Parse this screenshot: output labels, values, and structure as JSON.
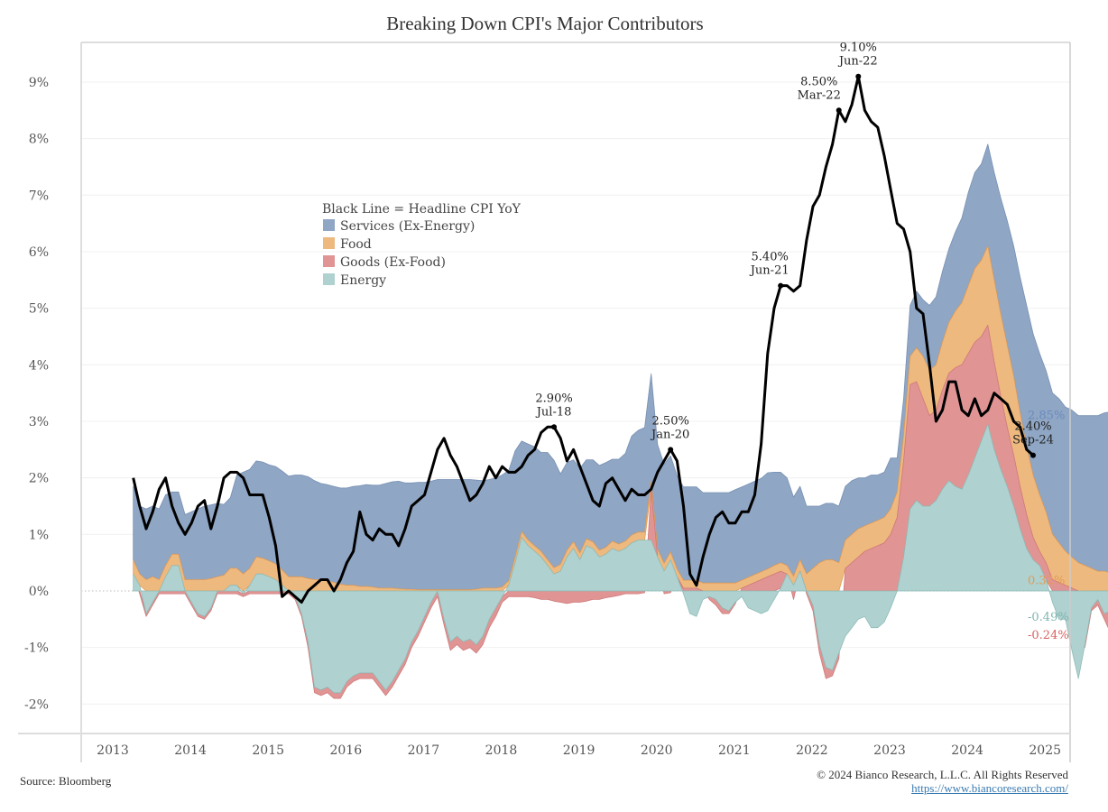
{
  "chart_data": {
    "type": "area",
    "title": "Breaking Down CPI's Major Contributors",
    "xlabel": "",
    "ylabel": "",
    "y_unit": "%",
    "ylim": [
      -2.4,
      9.6
    ],
    "yticks": [
      9,
      8,
      7,
      6,
      5,
      4,
      3,
      2,
      1,
      0,
      -1,
      -2
    ],
    "ytick_labels": [
      "9%",
      "8%",
      "7%",
      "6%",
      "5%",
      "4%",
      "3%",
      "2%",
      "1%",
      "0%",
      "-1%",
      "-2%"
    ],
    "xlim": [
      2012.7,
      2025.3
    ],
    "xticks": [
      2013,
      2014,
      2015,
      2016,
      2017,
      2018,
      2019,
      2020,
      2021,
      2022,
      2023,
      2024,
      2025
    ],
    "xtick_labels": [
      "2013",
      "2014",
      "2015",
      "2016",
      "2017",
      "2018",
      "2019",
      "2020",
      "2021",
      "2022",
      "2023",
      "2024",
      "2025"
    ],
    "grid": true,
    "stacked": true,
    "legend": {
      "placement": "upper-left-center",
      "header": "Black Line = Headline CPI YoY",
      "entries": [
        {
          "name": "Services (Ex-Energy)",
          "color": "#8fa6c4"
        },
        {
          "name": "Food",
          "color": "#eeb97f"
        },
        {
          "name": "Goods (Ex-Food)",
          "color": "#e09494"
        },
        {
          "name": "Energy",
          "color": "#afd1cf"
        }
      ]
    },
    "x_start": "2013-02",
    "x_step": "month",
    "series": [
      {
        "name": "Energy",
        "color": "#afd1cf",
        "edge": "#8fbcb8",
        "values": [
          0.3,
          0.1,
          -0.4,
          -0.2,
          0.0,
          0.25,
          0.45,
          0.45,
          0.0,
          -0.2,
          -0.4,
          -0.45,
          -0.3,
          0.0,
          0.0,
          0.1,
          0.1,
          -0.05,
          0.1,
          0.3,
          0.3,
          0.25,
          0.2,
          0.1,
          0.0,
          -0.1,
          -0.4,
          -0.9,
          -1.7,
          -1.75,
          -1.7,
          -1.8,
          -1.8,
          -1.6,
          -1.5,
          -1.45,
          -1.45,
          -1.45,
          -1.6,
          -1.75,
          -1.6,
          -1.4,
          -1.2,
          -0.9,
          -0.7,
          -0.45,
          -0.2,
          0.0,
          -0.5,
          -0.9,
          -0.8,
          -0.9,
          -0.85,
          -0.95,
          -0.8,
          -0.5,
          -0.3,
          -0.1,
          0.1,
          0.5,
          0.95,
          0.8,
          0.7,
          0.6,
          0.45,
          0.3,
          0.35,
          0.6,
          0.75,
          0.55,
          0.8,
          0.75,
          0.6,
          0.65,
          0.75,
          0.7,
          0.75,
          0.85,
          0.9,
          0.9,
          0.9,
          0.6,
          0.35,
          0.55,
          0.25,
          -0.05,
          -0.4,
          -0.45,
          -0.15,
          -0.1,
          -0.15,
          -0.3,
          -0.35,
          -0.2,
          -0.1,
          -0.3,
          -0.35,
          -0.4,
          -0.35,
          -0.15,
          0.05,
          0.3,
          0.1,
          0.35,
          0.0,
          -0.25,
          -0.95,
          -1.35,
          -1.4,
          -1.1,
          -0.8,
          -0.65,
          -0.5,
          -0.45,
          -0.65,
          -0.65,
          -0.55,
          -0.3,
          0.0,
          0.6,
          1.45,
          1.6,
          1.5,
          1.5,
          1.6,
          1.8,
          1.95,
          1.85,
          1.8,
          2.05,
          2.35,
          2.65,
          2.95,
          2.5,
          2.15,
          1.85,
          1.5,
          1.1,
          0.75,
          0.55,
          0.45,
          0.2,
          -0.2,
          -0.5,
          -0.5,
          -1.05,
          -1.55,
          -0.95,
          -0.3,
          -0.15,
          -0.4,
          -0.35,
          -0.1,
          -0.15,
          0.0,
          0.1,
          0.1,
          0.15,
          0.0,
          -0.1,
          -0.2,
          -0.49
        ]
      },
      {
        "name": "Goods (Ex-Food)",
        "color": "#e09494",
        "edge": "#d07a7a",
        "values": [
          0.0,
          -0.05,
          -0.05,
          -0.05,
          -0.05,
          -0.05,
          -0.05,
          -0.05,
          -0.05,
          -0.05,
          -0.05,
          -0.05,
          -0.05,
          -0.05,
          -0.05,
          -0.05,
          -0.05,
          -0.05,
          -0.05,
          -0.05,
          -0.05,
          -0.05,
          -0.05,
          -0.05,
          -0.05,
          -0.05,
          -0.05,
          -0.1,
          -0.1,
          -0.1,
          -0.1,
          -0.1,
          -0.1,
          -0.1,
          -0.1,
          -0.1,
          -0.1,
          -0.1,
          -0.1,
          -0.1,
          -0.1,
          -0.1,
          -0.1,
          -0.1,
          -0.1,
          -0.1,
          -0.1,
          -0.1,
          -0.1,
          -0.15,
          -0.15,
          -0.15,
          -0.15,
          -0.15,
          -0.15,
          -0.15,
          -0.15,
          -0.1,
          -0.1,
          -0.1,
          -0.1,
          -0.1,
          -0.12,
          -0.15,
          -0.15,
          -0.18,
          -0.2,
          -0.22,
          -0.2,
          -0.2,
          -0.18,
          -0.15,
          -0.15,
          -0.12,
          -0.1,
          -0.08,
          -0.05,
          -0.05,
          -0.05,
          -0.03,
          0.9,
          0.0,
          -0.05,
          -0.03,
          0.0,
          0.05,
          0.05,
          0.05,
          0.0,
          -0.05,
          -0.1,
          -0.1,
          -0.05,
          -0.03,
          0.05,
          0.1,
          0.15,
          0.2,
          0.25,
          0.3,
          0.3,
          0.0,
          -0.15,
          0.0,
          -0.05,
          -0.1,
          -0.15,
          -0.2,
          -0.1,
          -0.1,
          0.4,
          0.5,
          0.6,
          0.7,
          0.75,
          0.8,
          0.85,
          1.0,
          1.3,
          1.7,
          2.2,
          2.1,
          1.9,
          1.6,
          1.6,
          1.75,
          1.9,
          2.1,
          2.2,
          2.15,
          2.05,
          1.85,
          1.75,
          1.55,
          1.3,
          1.05,
          0.9,
          0.75,
          0.6,
          0.4,
          0.25,
          0.3,
          0.2,
          0.15,
          0.1,
          0.05,
          0.0,
          -0.05,
          -0.05,
          -0.1,
          -0.1,
          -0.4,
          -0.2,
          -0.15,
          -0.2,
          -0.3,
          -0.3,
          -0.3,
          -0.3,
          -0.35,
          -0.35,
          -0.4,
          -0.85,
          -0.24
        ]
      },
      {
        "name": "Food",
        "color": "#eeb97f",
        "edge": "#e29c55",
        "values": [
          0.25,
          0.2,
          0.2,
          0.25,
          0.2,
          0.2,
          0.2,
          0.2,
          0.2,
          0.2,
          0.2,
          0.2,
          0.22,
          0.25,
          0.28,
          0.3,
          0.3,
          0.3,
          0.3,
          0.3,
          0.28,
          0.28,
          0.28,
          0.27,
          0.25,
          0.25,
          0.25,
          0.22,
          0.2,
          0.2,
          0.18,
          0.15,
          0.12,
          0.1,
          0.1,
          0.08,
          0.08,
          0.07,
          0.05,
          0.05,
          0.05,
          0.04,
          0.03,
          0.03,
          0.02,
          0.02,
          0.02,
          0.02,
          0.02,
          0.02,
          0.02,
          0.02,
          0.02,
          0.03,
          0.05,
          0.05,
          0.05,
          0.07,
          0.08,
          0.1,
          0.1,
          0.1,
          0.1,
          0.1,
          0.1,
          0.11,
          0.12,
          0.12,
          0.12,
          0.12,
          0.12,
          0.12,
          0.12,
          0.12,
          0.13,
          0.13,
          0.13,
          0.14,
          0.14,
          0.14,
          0.14,
          0.14,
          0.14,
          0.14,
          0.14,
          0.14,
          0.14,
          0.14,
          0.14,
          0.14,
          0.14,
          0.14,
          0.14,
          0.14,
          0.14,
          0.14,
          0.14,
          0.14,
          0.14,
          0.15,
          0.15,
          0.15,
          0.16,
          0.2,
          0.3,
          0.4,
          0.5,
          0.55,
          0.55,
          0.5,
          0.5,
          0.5,
          0.5,
          0.45,
          0.45,
          0.45,
          0.45,
          0.45,
          0.45,
          0.45,
          0.5,
          0.6,
          0.75,
          0.8,
          0.8,
          0.85,
          0.9,
          1.0,
          1.1,
          1.2,
          1.3,
          1.35,
          1.4,
          1.45,
          1.45,
          1.45,
          1.4,
          1.3,
          1.2,
          1.1,
          1.0,
          0.9,
          0.8,
          0.7,
          0.6,
          0.55,
          0.5,
          0.45,
          0.4,
          0.35,
          0.35,
          0.32,
          0.3,
          0.3,
          0.3,
          0.28,
          0.28,
          0.28,
          0.28,
          0.28,
          0.28,
          0.27,
          0.3,
          0.32
        ]
      },
      {
        "name": "Services (Ex-Energy)",
        "color": "#8fa6c4",
        "edge": "#7790b3",
        "values": [
          1.3,
          1.2,
          1.25,
          1.25,
          1.25,
          1.25,
          1.1,
          1.1,
          1.15,
          1.2,
          1.25,
          1.3,
          1.3,
          1.3,
          1.25,
          1.25,
          1.65,
          1.8,
          1.75,
          1.7,
          1.7,
          1.7,
          1.72,
          1.75,
          1.78,
          1.8,
          1.8,
          1.8,
          1.75,
          1.7,
          1.7,
          1.7,
          1.7,
          1.72,
          1.75,
          1.78,
          1.8,
          1.8,
          1.82,
          1.85,
          1.88,
          1.9,
          1.88,
          1.88,
          1.9,
          1.9,
          1.92,
          1.95,
          1.95,
          1.95,
          1.95,
          1.95,
          1.95,
          1.93,
          1.9,
          1.92,
          1.95,
          1.98,
          1.95,
          1.88,
          1.6,
          1.7,
          1.75,
          1.75,
          1.9,
          1.9,
          1.6,
          1.55,
          1.45,
          1.5,
          1.4,
          1.45,
          1.5,
          1.5,
          1.45,
          1.5,
          1.55,
          1.75,
          1.8,
          1.85,
          1.9,
          1.85,
          1.75,
          1.7,
          1.65,
          1.65,
          1.65,
          1.65,
          1.6,
          1.6,
          1.6,
          1.6,
          1.6,
          1.65,
          1.65,
          1.65,
          1.65,
          1.65,
          1.7,
          1.65,
          1.6,
          1.55,
          1.4,
          1.3,
          1.2,
          1.1,
          1.0,
          1.0,
          1.0,
          1.0,
          0.95,
          0.95,
          0.9,
          0.85,
          0.85,
          0.8,
          0.8,
          0.9,
          0.6,
          0.65,
          0.9,
          1.0,
          1.0,
          1.15,
          1.2,
          1.25,
          1.3,
          1.4,
          1.5,
          1.65,
          1.7,
          1.7,
          1.8,
          1.9,
          2.05,
          2.2,
          2.3,
          2.4,
          2.5,
          2.5,
          2.5,
          2.5,
          2.5,
          2.55,
          2.55,
          2.6,
          2.6,
          2.65,
          2.7,
          2.75,
          2.8,
          2.85,
          2.9,
          2.95,
          2.95,
          2.9,
          2.9,
          2.9,
          2.85,
          2.85,
          2.85
        ]
      },
      {
        "name": "Headline CPI YoY",
        "type": "line",
        "color": "#000000",
        "values": [
          2.0,
          1.5,
          1.1,
          1.4,
          1.8,
          2.0,
          1.5,
          1.2,
          1.0,
          1.2,
          1.5,
          1.6,
          1.1,
          1.5,
          2.0,
          2.1,
          2.1,
          2.0,
          1.7,
          1.7,
          1.7,
          1.3,
          0.8,
          -0.1,
          0.0,
          -0.1,
          -0.2,
          0.0,
          0.1,
          0.2,
          0.2,
          0.0,
          0.2,
          0.5,
          0.7,
          1.4,
          1.0,
          0.9,
          1.1,
          1.0,
          1.0,
          0.8,
          1.1,
          1.5,
          1.6,
          1.7,
          2.1,
          2.5,
          2.7,
          2.4,
          2.2,
          1.9,
          1.6,
          1.7,
          1.9,
          2.2,
          2.0,
          2.2,
          2.1,
          2.1,
          2.2,
          2.4,
          2.5,
          2.8,
          2.9,
          2.9,
          2.7,
          2.3,
          2.5,
          2.2,
          1.9,
          1.6,
          1.5,
          1.9,
          2.0,
          1.8,
          1.6,
          1.8,
          1.7,
          1.7,
          1.8,
          2.1,
          2.3,
          2.5,
          2.3,
          1.5,
          0.3,
          0.1,
          0.6,
          1.0,
          1.3,
          1.4,
          1.2,
          1.2,
          1.4,
          1.4,
          1.7,
          2.6,
          4.2,
          5.0,
          5.4,
          5.4,
          5.3,
          5.4,
          6.2,
          6.8,
          7.0,
          7.5,
          7.9,
          8.5,
          8.3,
          8.6,
          9.1,
          8.5,
          8.3,
          8.2,
          7.7,
          7.1,
          6.5,
          6.4,
          6.0,
          5.0,
          4.9,
          4.0,
          3.0,
          3.2,
          3.7,
          3.7,
          3.2,
          3.1,
          3.4,
          3.1,
          3.2,
          3.5,
          3.4,
          3.3,
          3.0,
          2.9,
          2.5,
          2.4
        ]
      }
    ],
    "annotations": [
      {
        "index": 65,
        "value_label": "2.90%",
        "date_label": "Jul-18"
      },
      {
        "index": 83,
        "value_label": "2.50%",
        "date_label": "Jan-20"
      },
      {
        "index": 100,
        "value_label": "5.40%",
        "date_label": "Jun-21"
      },
      {
        "index": 109,
        "value_label": "8.50%",
        "date_label": "Mar-22"
      },
      {
        "index": 112,
        "value_label": "9.10%",
        "date_label": "Jun-22"
      },
      {
        "index": 139,
        "value_label": "2.40%",
        "date_label": "Sep-24"
      }
    ],
    "end_labels": [
      {
        "series": "Services (Ex-Energy)",
        "text": "2.85%",
        "color": "#6a8bbd",
        "value": 3.1
      },
      {
        "series": "Food",
        "text": "0.32%",
        "color": "#e29c55",
        "value": 0.18
      },
      {
        "series": "Energy",
        "text": "-0.49%",
        "color": "#7fb5b0",
        "value": -0.46
      },
      {
        "series": "Goods (Ex-Food)",
        "text": "-0.24%",
        "color": "#d9605f",
        "value": -0.78
      }
    ]
  },
  "footer": {
    "source": "Source: Bloomberg",
    "copyright": "© 2024 Bianco Research, L.L.C. All Rights Reserved",
    "url": "https://www.biancoresearch.com/"
  }
}
